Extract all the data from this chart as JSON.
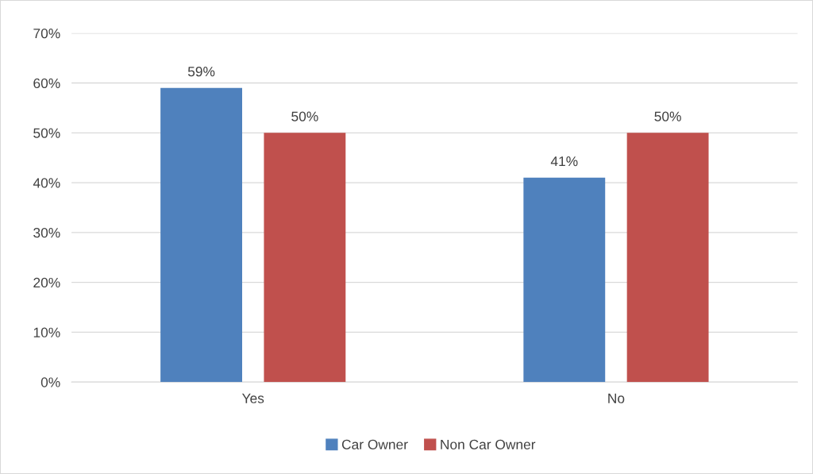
{
  "chart_data": {
    "type": "bar",
    "categories": [
      "Yes",
      "No"
    ],
    "series": [
      {
        "name": "Car Owner",
        "color": "#4f81bd",
        "values": [
          59,
          41
        ],
        "value_labels": [
          "59%",
          "41%"
        ]
      },
      {
        "name": "Non Car Owner",
        "color": "#c0504d",
        "values": [
          50,
          50
        ],
        "value_labels": [
          "50%",
          "50%"
        ]
      }
    ],
    "ylim": [
      0,
      70
    ],
    "yticks": [
      {
        "value": 0,
        "label": "0%"
      },
      {
        "value": 10,
        "label": "10%"
      },
      {
        "value": 20,
        "label": "20%"
      },
      {
        "value": 30,
        "label": "30%"
      },
      {
        "value": 40,
        "label": "40%"
      },
      {
        "value": 50,
        "label": "50%"
      },
      {
        "value": 60,
        "label": "60%"
      },
      {
        "value": 70,
        "label": "70%"
      }
    ],
    "grid": "y",
    "legend": "bottom"
  }
}
